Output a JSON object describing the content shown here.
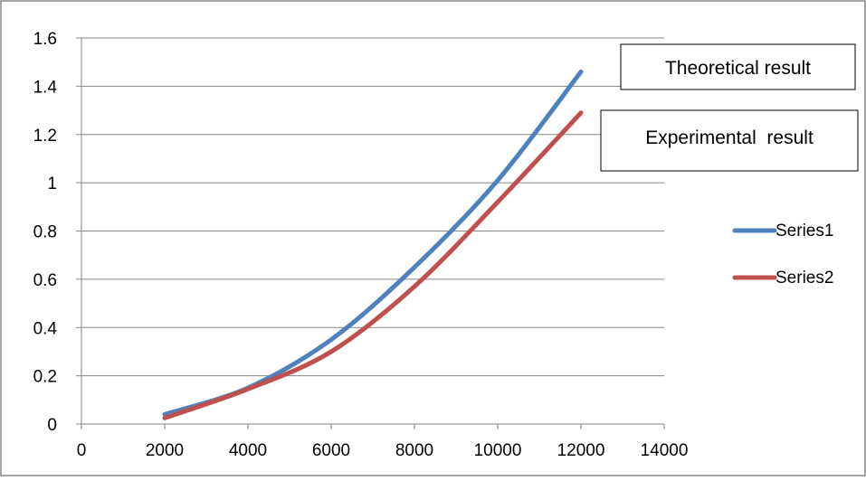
{
  "chart_data": {
    "type": "line",
    "title": "",
    "xlabel": "",
    "ylabel": "",
    "xlim": [
      0,
      14000
    ],
    "ylim": [
      0,
      1.6
    ],
    "x_ticks": [
      0,
      2000,
      4000,
      6000,
      8000,
      10000,
      12000,
      14000
    ],
    "x_tick_labels": [
      "0",
      "2000",
      "4000",
      "6000",
      "8000",
      "10000",
      "12000",
      "14000"
    ],
    "y_ticks": [
      0,
      0.2,
      0.4,
      0.6,
      0.8,
      1,
      1.2,
      1.4,
      1.6
    ],
    "y_tick_labels": [
      "0",
      "0.2",
      "0.4",
      "0.6",
      "0.8",
      "1",
      "1.2",
      "1.4",
      "1.6"
    ],
    "grid": "horizontal",
    "legend_placement": "right",
    "series": [
      {
        "name": "Series1",
        "color": "#4f81bd",
        "x": [
          2000,
          4000,
          6000,
          8000,
          10000,
          12000
        ],
        "values": [
          0.04,
          0.15,
          0.35,
          0.65,
          1.01,
          1.46
        ]
      },
      {
        "name": "Series2",
        "color": "#c0504d",
        "x": [
          2000,
          4000,
          6000,
          8000,
          10000,
          12000
        ],
        "values": [
          0.025,
          0.145,
          0.3,
          0.57,
          0.92,
          1.29
        ]
      }
    ],
    "annotations": [
      {
        "text": "Theoretical result"
      },
      {
        "text": "Experimental  result"
      }
    ]
  }
}
